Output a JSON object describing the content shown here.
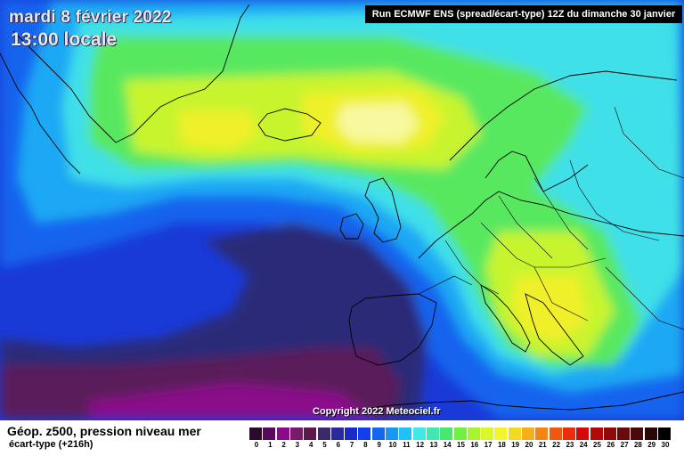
{
  "header": {
    "date": "mardi 8 février 2022",
    "time": "13:00 locale",
    "run": "Run ECMWF ENS (spread/écart-type) 12Z du dimanche 30 janvier"
  },
  "footer": {
    "copyright": "Copyright 2022 Meteociel.fr",
    "field_title": "Géop. z500, pression niveau mer",
    "field_sub": "écart-type   (+216h)"
  },
  "scale": {
    "labels": [
      "0",
      "1",
      "2",
      "3",
      "4",
      "5",
      "6",
      "7",
      "8",
      "9",
      "10",
      "11",
      "12",
      "13",
      "14",
      "15",
      "16",
      "17",
      "18",
      "19",
      "20",
      "21",
      "22",
      "23",
      "24",
      "25",
      "26",
      "27",
      "28",
      "29",
      "30"
    ],
    "colors": [
      "#2b0a2b",
      "#5a0a5a",
      "#8a0a8a",
      "#7a1a6a",
      "#5a1a4a",
      "#3a2a6a",
      "#2a2a9a",
      "#1a2ac8",
      "#1040ee",
      "#1468f0",
      "#1898f4",
      "#20c0f8",
      "#40e8e8",
      "#40e8b0",
      "#48e870",
      "#70f040",
      "#a8f430",
      "#d8f82a",
      "#f4f42a",
      "#f4d824",
      "#f4b01c",
      "#f48414",
      "#f45810",
      "#ec2c0c",
      "#d40a0a",
      "#b00a0a",
      "#900a0a",
      "#6a0a0a",
      "#4a0a0a",
      "#2a0808",
      "#000000"
    ]
  },
  "palette": {
    "ocean_deep": "#1a3ad8",
    "blue": "#1464ee",
    "light_blue": "#1ca8f4",
    "cyan": "#40e0e8",
    "green": "#58e860",
    "yellow_green": "#c8f42e",
    "yellow": "#f0f02a",
    "pale_yellow": "#f8f8a0",
    "navy": "#2a2a78",
    "purple": "#5a1a5a",
    "magenta": "#8a0a8a"
  }
}
